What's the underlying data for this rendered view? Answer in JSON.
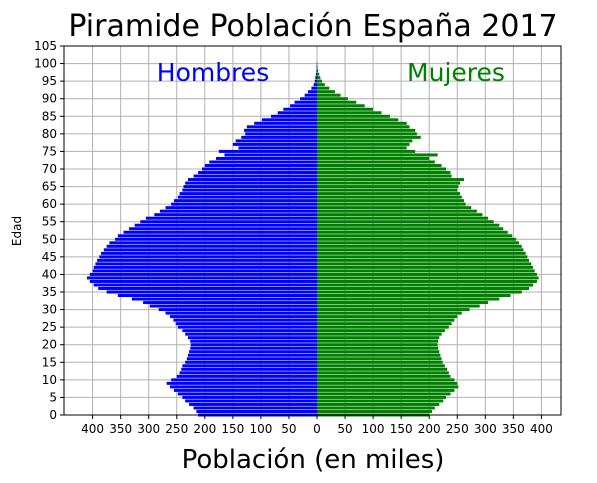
{
  "chart_data": {
    "type": "bar",
    "orientation": "horizontal",
    "title": "Piramide Población España 2017",
    "xlabel": "Población (en miles)",
    "ylabel": "Edad",
    "xlim": [
      -400,
      400
    ],
    "ylim": [
      0,
      105
    ],
    "grid": true,
    "x_ticks": [
      -400,
      -350,
      -300,
      -250,
      -200,
      -150,
      -100,
      -50,
      0,
      50,
      100,
      150,
      200,
      250,
      300,
      350,
      400
    ],
    "x_tick_labels": [
      "400",
      "350",
      "300",
      "250",
      "200",
      "150",
      "100",
      "50",
      "0",
      "50",
      "100",
      "150",
      "200",
      "250",
      "300",
      "350",
      "400"
    ],
    "y_ticks": [
      0,
      5,
      10,
      15,
      20,
      25,
      30,
      35,
      40,
      45,
      50,
      55,
      60,
      65,
      70,
      75,
      80,
      85,
      90,
      95,
      100,
      105
    ],
    "y_tick_labels": [
      "0",
      "5",
      "10",
      "15",
      "20",
      "25",
      "30",
      "35",
      "40",
      "45",
      "50",
      "55",
      "60",
      "65",
      "70",
      "75",
      "80",
      "85",
      "90",
      "95",
      "100",
      "105"
    ],
    "age_start": 0,
    "series": [
      {
        "name": "Hombres",
        "color": "#0000ff",
        "values": [
          212,
          215,
          220,
          228,
          235,
          240,
          248,
          255,
          262,
          268,
          260,
          250,
          245,
          242,
          240,
          235,
          232,
          230,
          228,
          226,
          225,
          226,
          230,
          235,
          240,
          248,
          252,
          256,
          262,
          270,
          282,
          298,
          310,
          330,
          355,
          375,
          390,
          398,
          405,
          410,
          405,
          400,
          398,
          395,
          392,
          388,
          385,
          380,
          375,
          370,
          360,
          355,
          345,
          335,
          325,
          315,
          305,
          290,
          280,
          270,
          260,
          255,
          248,
          245,
          240,
          238,
          235,
          230,
          220,
          212,
          205,
          200,
          192,
          180,
          165,
          175,
          140,
          150,
          145,
          135,
          128,
          130,
          125,
          112,
          98,
          82,
          70,
          60,
          48,
          40,
          30,
          22,
          16,
          10,
          6,
          4,
          3,
          2,
          1,
          1,
          0.5
        ]
      },
      {
        "name": "Mujeres",
        "color": "#008000",
        "values": [
          200,
          205,
          210,
          218,
          225,
          230,
          238,
          245,
          252,
          250,
          245,
          238,
          235,
          232,
          228,
          224,
          222,
          220,
          218,
          216,
          215,
          216,
          218,
          222,
          228,
          235,
          240,
          245,
          250,
          258,
          272,
          290,
          305,
          325,
          345,
          365,
          378,
          385,
          392,
          395,
          392,
          388,
          385,
          382,
          378,
          375,
          372,
          368,
          365,
          360,
          355,
          348,
          340,
          332,
          325,
          315,
          305,
          295,
          285,
          275,
          265,
          262,
          258,
          255,
          250,
          252,
          255,
          262,
          240,
          238,
          230,
          222,
          210,
          200,
          215,
          175,
          160,
          165,
          170,
          185,
          178,
          175,
          165,
          160,
          145,
          130,
          115,
          100,
          85,
          70,
          55,
          42,
          32,
          22,
          14,
          9,
          6,
          4,
          2,
          1,
          0.5
        ]
      }
    ]
  }
}
